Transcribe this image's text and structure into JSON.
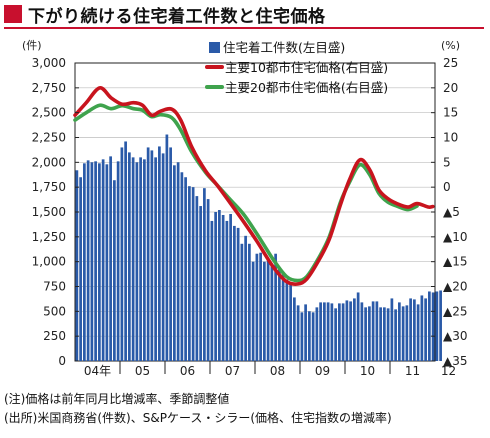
{
  "header": {
    "title": "下がり続ける住宅着工件数と住宅価格"
  },
  "notes": {
    "note": "(注)価格は前年同月比増減率、季節調整値",
    "source": "(出所)米国商務省(件数)、S&Pケース・シラー(価格、住宅指数の増減率)"
  },
  "colors": {
    "bars": "#2a5aa8",
    "line_10city": "#c8141e",
    "line_20city": "#3fa34d",
    "accent": "#c8102e"
  },
  "chart_data": {
    "type": "bar+line",
    "left_axis": {
      "unit": "(件)",
      "min": 0,
      "max": 3000,
      "ticks": [
        0,
        250,
        500,
        750,
        1000,
        1250,
        1500,
        1750,
        2000,
        2250,
        2500,
        2750,
        3000
      ],
      "tick_labels": [
        "0",
        "250",
        "500",
        "750",
        "1,000",
        "1,250",
        "1,500",
        "1,750",
        "2,000",
        "2,250",
        "2,500",
        "2,750",
        "3,000"
      ]
    },
    "right_axis": {
      "unit": "(%)",
      "min": -35,
      "max": 25,
      "ticks": [
        25,
        20,
        15,
        10,
        5,
        0,
        -5,
        -10,
        -15,
        -20,
        -25,
        -30,
        -35
      ],
      "tick_labels": [
        "25",
        "20",
        "15",
        "10",
        "5",
        "0",
        "▲5",
        "▲10",
        "▲15",
        "▲20",
        "▲25",
        "▲30",
        "▲35"
      ]
    },
    "x_axis": {
      "start": 2004.0,
      "end": 2012.0,
      "labels": [
        {
          "text": "04年",
          "x": 2004.5
        },
        {
          "text": "05",
          "x": 2005.5
        },
        {
          "text": "06",
          "x": 2006.5
        },
        {
          "text": "07",
          "x": 2007.5
        },
        {
          "text": "08",
          "x": 2008.5
        },
        {
          "text": "09",
          "x": 2009.5
        },
        {
          "text": "10",
          "x": 2010.5
        },
        {
          "text": "11",
          "x": 2011.5
        },
        {
          "text": "12",
          "x": 2012.3
        }
      ]
    },
    "legend": {
      "placement": "top-right",
      "items": [
        {
          "label": "住宅着工件数(左目盛)",
          "kind": "bar"
        },
        {
          "label": "主要10都市住宅価格(右目盛)",
          "kind": "line_10city"
        },
        {
          "label": "主要20都市住宅価格(右目盛)",
          "kind": "line_20city"
        }
      ]
    },
    "bars": {
      "name": "住宅着工件数(左目盛)",
      "start": 2004.0,
      "step_months": 1,
      "values": [
        1920,
        1850,
        1990,
        2020,
        2000,
        2010,
        1990,
        2030,
        1980,
        2060,
        1820,
        2010,
        2150,
        2210,
        2100,
        2050,
        2000,
        2050,
        2030,
        2150,
        2120,
        2050,
        2160,
        2090,
        2280,
        2150,
        1970,
        2000,
        1900,
        1850,
        1760,
        1750,
        1660,
        1560,
        1740,
        1630,
        1410,
        1500,
        1520,
        1470,
        1410,
        1480,
        1360,
        1340,
        1180,
        1260,
        1180,
        1000,
        1080,
        1090,
        1000,
        1020,
        980,
        1080,
        940,
        870,
        820,
        780,
        640,
        560,
        490,
        570,
        500,
        490,
        540,
        590,
        590,
        590,
        580,
        530,
        580,
        580,
        610,
        600,
        630,
        690,
        590,
        540,
        550,
        600,
        600,
        540,
        540,
        530,
        630,
        520,
        590,
        550,
        560,
        630,
        620,
        570,
        660,
        630,
        700,
        690,
        700,
        710
      ]
    },
    "series": [
      {
        "name": "主要10都市住宅価格(右目盛)",
        "points": [
          [
            2004.0,
            14.5
          ],
          [
            2004.25,
            17.0
          ],
          [
            2004.55,
            20.0
          ],
          [
            2004.8,
            18.0
          ],
          [
            2005.05,
            16.7
          ],
          [
            2005.3,
            17.0
          ],
          [
            2005.5,
            16.5
          ],
          [
            2005.7,
            14.5
          ],
          [
            2005.9,
            15.3
          ],
          [
            2006.15,
            15.7
          ],
          [
            2006.35,
            13.5
          ],
          [
            2006.6,
            8.0
          ],
          [
            2006.9,
            3.3
          ],
          [
            2007.15,
            0.5
          ],
          [
            2007.45,
            -3.2
          ],
          [
            2007.75,
            -7.0
          ],
          [
            2008.05,
            -11.0
          ],
          [
            2008.4,
            -16.0
          ],
          [
            2008.7,
            -19.0
          ],
          [
            2008.95,
            -19.5
          ],
          [
            2009.15,
            -18.5
          ],
          [
            2009.4,
            -15.0
          ],
          [
            2009.65,
            -10.5
          ],
          [
            2009.9,
            -3.5
          ],
          [
            2010.1,
            1.5
          ],
          [
            2010.33,
            5.5
          ],
          [
            2010.55,
            3.5
          ],
          [
            2010.75,
            -0.5
          ],
          [
            2010.95,
            -2.3
          ],
          [
            2011.15,
            -3.3
          ],
          [
            2011.4,
            -4.0
          ],
          [
            2011.6,
            -3.3
          ],
          [
            2011.85,
            -4.0
          ],
          [
            2011.95,
            -3.9
          ]
        ]
      },
      {
        "name": "主要20都市住宅価格(右目盛)",
        "points": [
          [
            2004.0,
            13.5
          ],
          [
            2004.25,
            15.0
          ],
          [
            2004.55,
            16.5
          ],
          [
            2004.8,
            15.8
          ],
          [
            2005.05,
            16.4
          ],
          [
            2005.3,
            15.8
          ],
          [
            2005.5,
            15.5
          ],
          [
            2005.7,
            14.2
          ],
          [
            2005.9,
            14.6
          ],
          [
            2006.15,
            14.0
          ],
          [
            2006.35,
            11.5
          ],
          [
            2006.6,
            7.0
          ],
          [
            2006.9,
            3.0
          ],
          [
            2007.15,
            0.5
          ],
          [
            2007.45,
            -2.5
          ],
          [
            2007.75,
            -5.5
          ],
          [
            2008.05,
            -9.5
          ],
          [
            2008.4,
            -14.5
          ],
          [
            2008.7,
            -18.0
          ],
          [
            2008.95,
            -18.8
          ],
          [
            2009.15,
            -18.0
          ],
          [
            2009.4,
            -14.5
          ],
          [
            2009.65,
            -10.0
          ],
          [
            2009.9,
            -3.0
          ],
          [
            2010.1,
            1.0
          ],
          [
            2010.33,
            4.5
          ],
          [
            2010.55,
            2.5
          ],
          [
            2010.75,
            -1.2
          ],
          [
            2010.95,
            -3.0
          ],
          [
            2011.15,
            -3.8
          ],
          [
            2011.4,
            -4.5
          ],
          [
            2011.6,
            -3.8
          ]
        ]
      }
    ]
  }
}
